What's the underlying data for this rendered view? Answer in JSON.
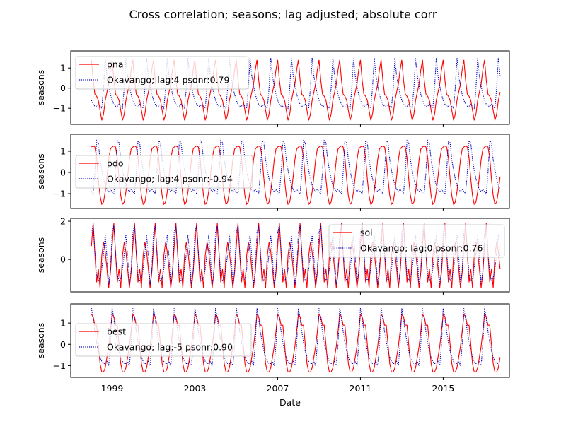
{
  "chart_data": {
    "type": "line",
    "title": "Cross correlation; seasons; lag adjusted; absolute corr",
    "xlabel": "Date",
    "xlim": [
      1997.0,
      2018.2
    ],
    "xticks": [
      "1999",
      "2003",
      "2007",
      "2011",
      "2015"
    ],
    "x_start": 1998.0,
    "x_end": 2017.75,
    "grid": false,
    "subplots": [
      {
        "ylabel": "seasons",
        "ylim": [
          -1.8,
          1.85
        ],
        "yticks": [
          "-1",
          "0",
          "1"
        ],
        "legend_position": "upper-left",
        "series": [
          {
            "name": "pna",
            "color": "#ff0000",
            "style": "solid",
            "cycle": [
              1.4,
              0.4,
              -0.3,
              -0.4,
              -0.6,
              -1.1,
              -1.6,
              -1.3,
              -0.6,
              -0.2,
              0.2,
              0.9
            ],
            "start": 0
          },
          {
            "name": "Okavango; lag:4 psonr:0.79",
            "color": "#0000bb",
            "style": "dotted",
            "cycle": [
              1.5,
              0.6,
              0.1,
              -0.3,
              -0.6,
              -0.8,
              -0.9,
              -0.9,
              -0.8,
              -0.9,
              -1.0,
              0.0
            ],
            "start": 4
          }
        ]
      },
      {
        "ylabel": "seasons",
        "ylim": [
          -1.7,
          1.8
        ],
        "yticks": [
          "-1",
          "0",
          "1"
        ],
        "legend_position": "center-left",
        "series": [
          {
            "name": "pdo",
            "color": "#ff0000",
            "style": "solid",
            "cycle": [
              1.2,
              1.25,
              1.2,
              0.7,
              -0.3,
              -1.1,
              -1.5,
              -1.4,
              -0.9,
              -0.2,
              0.6,
              1.1
            ],
            "start": 0
          },
          {
            "name": "Okavango; lag:4 psonr:-0.94",
            "color": "#0000bb",
            "style": "dotted",
            "cycle": [
              -0.6,
              -0.8,
              -0.9,
              -0.8,
              -0.9,
              -1.0,
              0.0,
              1.5,
              1.4,
              0.6,
              0.1,
              -0.3
            ],
            "start": 4
          }
        ]
      },
      {
        "ylabel": "seasons",
        "ylim": [
          -1.7,
          2.15
        ],
        "yticks": [
          "0",
          "2"
        ],
        "legend_position": "upper-right",
        "series": [
          {
            "name": "soi",
            "color": "#ff0000",
            "style": "solid",
            "cycle": [
              0.7,
              1.9,
              0.3,
              -1.2,
              -0.5,
              -1.5,
              0.2,
              0.9,
              0.4,
              -0.5,
              -1.5,
              -0.7
            ],
            "start": 0
          },
          {
            "name": "Okavango; lag:0 psonr:0.76",
            "color": "#0000bb",
            "style": "dotted",
            "cycle": [
              1.4,
              1.8,
              0.4,
              -0.8,
              -1.1,
              -1.0,
              -0.5,
              0.3,
              1.3,
              0.1,
              -1.3,
              -0.6
            ],
            "start": 0
          }
        ]
      },
      {
        "ylabel": "seasons",
        "ylim": [
          -1.55,
          1.9
        ],
        "yticks": [
          "-1",
          "0",
          "1"
        ],
        "legend_position": "center-left",
        "series": [
          {
            "name": "best",
            "color": "#ff0000",
            "style": "solid",
            "cycle": [
              1.4,
              1.3,
              0.9,
              0.9,
              0.0,
              -0.9,
              -1.3,
              -1.3,
              -1.1,
              -0.6,
              -0.1,
              0.6
            ],
            "start": 0
          },
          {
            "name": "Okavango; lag:-5 psonr:0.90",
            "color": "#0000bb",
            "style": "dotted",
            "cycle": [
              1.7,
              1.2,
              0.6,
              0.1,
              -0.3,
              -0.6,
              -0.8,
              -0.9,
              -0.9,
              -0.8,
              -1.0,
              0.0
            ],
            "start": 0
          }
        ]
      }
    ]
  }
}
